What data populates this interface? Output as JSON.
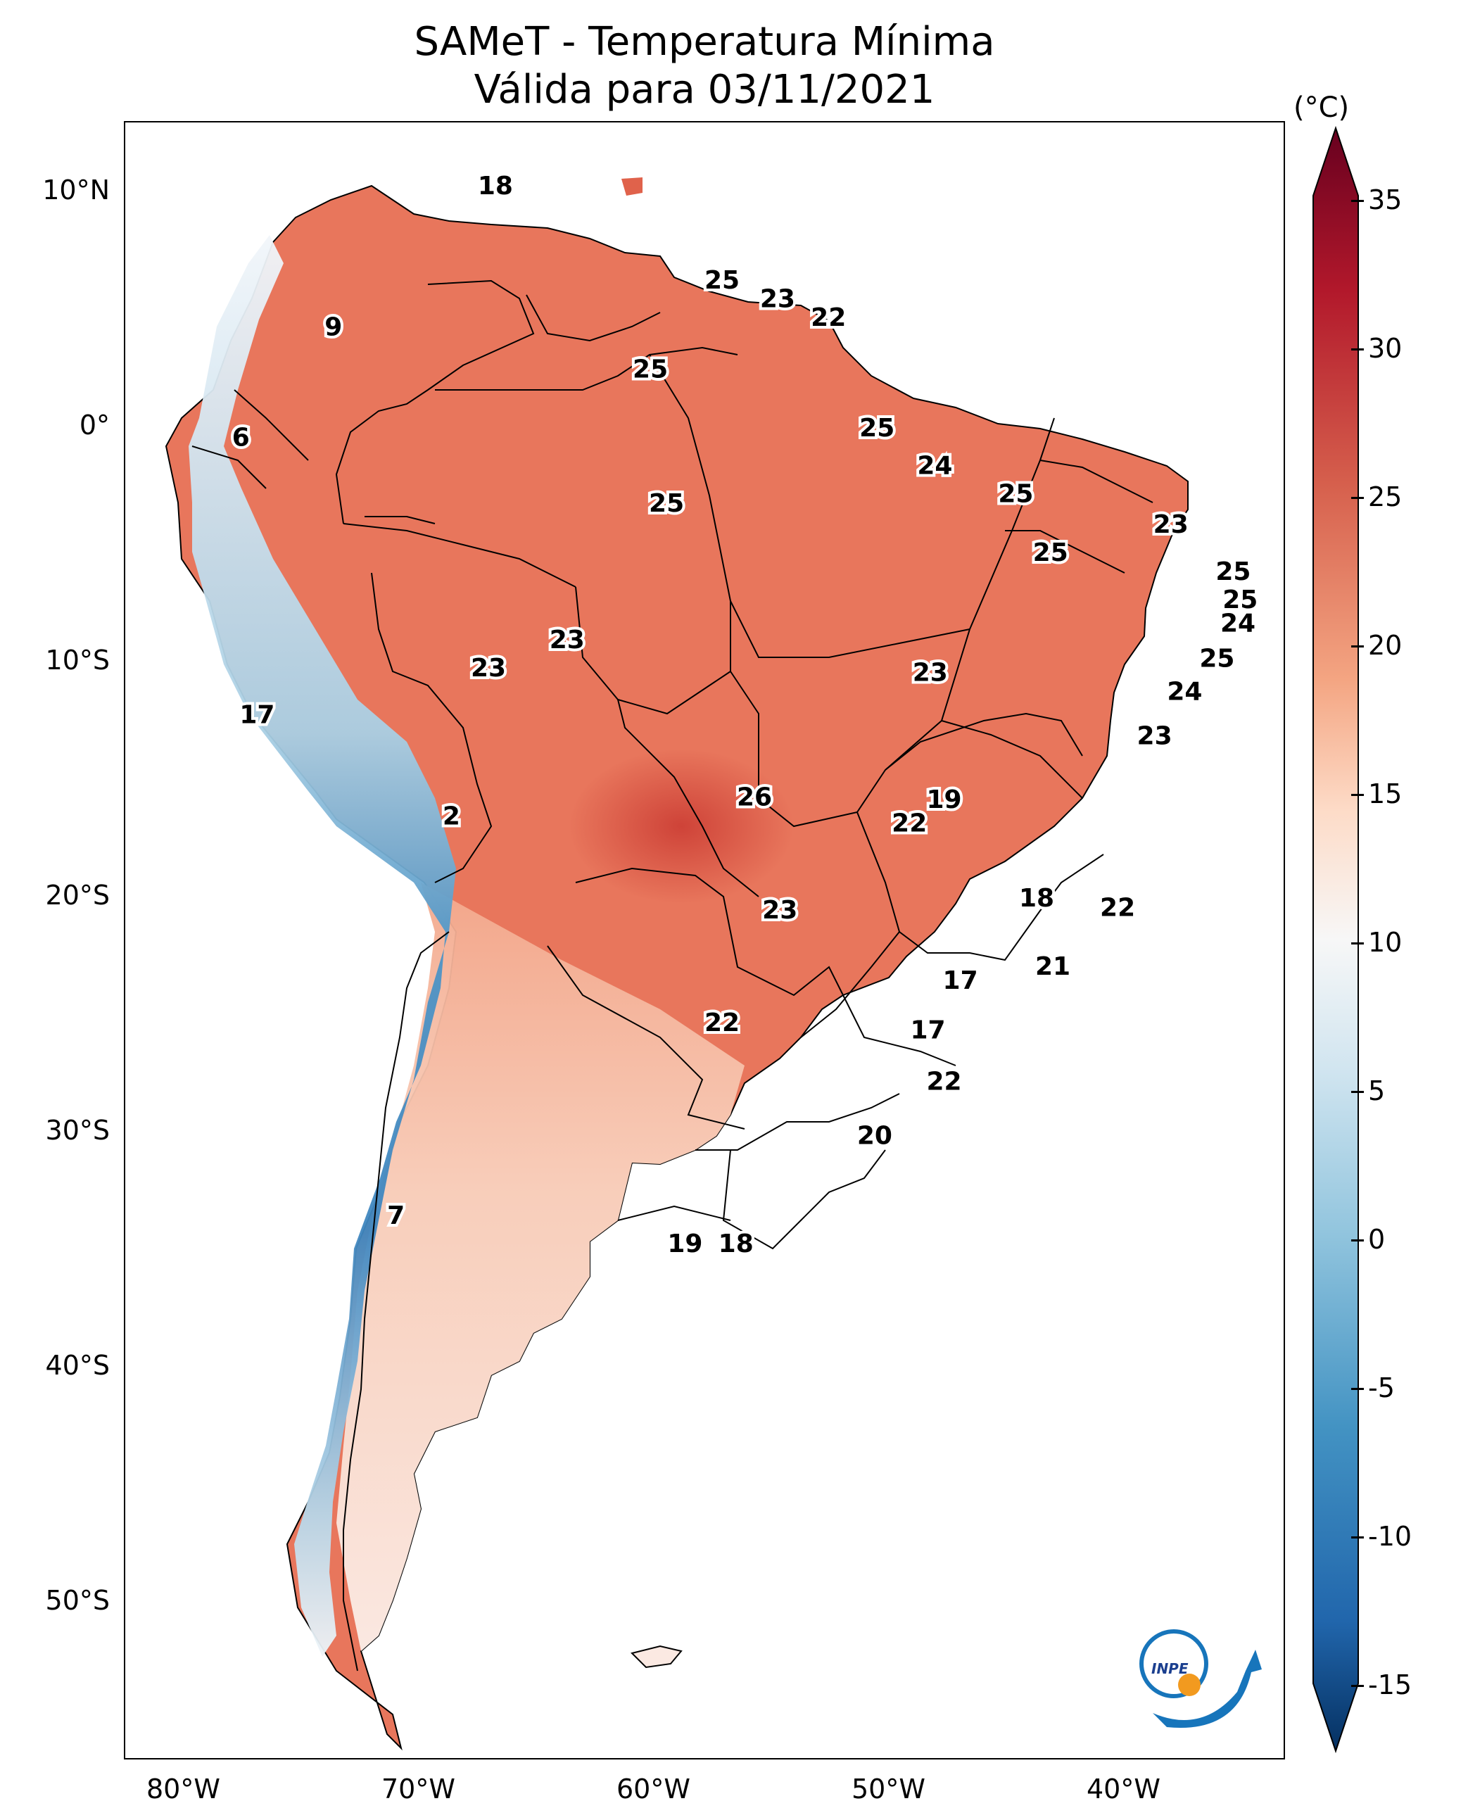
{
  "title": "SAMeT - Temperatura Mínima",
  "subtitle": "Válida para 03/11/2021",
  "latitude_labels": [
    "10°N",
    "0°",
    "10°S",
    "20°S",
    "30°S",
    "40°S",
    "50°S"
  ],
  "longitude_labels": [
    "80°W",
    "70°W",
    "60°W",
    "50°W",
    "40°W"
  ],
  "colorbar": {
    "unit": "(°C)",
    "ticks": [
      "35",
      "30",
      "25",
      "20",
      "15",
      "10",
      "5",
      "0",
      "-5",
      "-10",
      "-15"
    ],
    "range": [
      -15,
      35
    ]
  },
  "logo": "INPE",
  "map_values": [
    {
      "label": "18",
      "lon": -67,
      "lat": 10.5
    },
    {
      "label": "9",
      "lon": -74,
      "lat": 4.5
    },
    {
      "label": "6",
      "lon": -78,
      "lat": -0.2
    },
    {
      "label": "25",
      "lon": -57.2,
      "lat": 6.5
    },
    {
      "label": "23",
      "lon": -54.8,
      "lat": 5.7
    },
    {
      "label": "22",
      "lon": -52.6,
      "lat": 4.9
    },
    {
      "label": "25",
      "lon": -60.3,
      "lat": 2.7
    },
    {
      "label": "25",
      "lon": -50.5,
      "lat": 0.2
    },
    {
      "label": "24",
      "lon": -48,
      "lat": -1.4
    },
    {
      "label": "25",
      "lon": -59.6,
      "lat": -3
    },
    {
      "label": "25",
      "lon": -44.5,
      "lat": -2.6
    },
    {
      "label": "23",
      "lon": -37.8,
      "lat": -3.9
    },
    {
      "label": "25",
      "lon": -43,
      "lat": -5.1
    },
    {
      "label": "25",
      "lon": -35.1,
      "lat": -5.9
    },
    {
      "label": "25",
      "lon": -34.8,
      "lat": -7.1
    },
    {
      "label": "24",
      "lon": -34.9,
      "lat": -8.1
    },
    {
      "label": "25",
      "lon": -35.8,
      "lat": -9.6
    },
    {
      "label": "23",
      "lon": -63.9,
      "lat": -8.8
    },
    {
      "label": "23",
      "lon": -67.3,
      "lat": -10
    },
    {
      "label": "23",
      "lon": -48.2,
      "lat": -10.2
    },
    {
      "label": "24",
      "lon": -37.2,
      "lat": -11
    },
    {
      "label": "17",
      "lon": -77.3,
      "lat": -12
    },
    {
      "label": "23",
      "lon": -38.5,
      "lat": -12.9
    },
    {
      "label": "26",
      "lon": -55.8,
      "lat": -15.5
    },
    {
      "label": "19",
      "lon": -47.6,
      "lat": -15.6
    },
    {
      "label": "2",
      "lon": -68.9,
      "lat": -16.3
    },
    {
      "label": "22",
      "lon": -49.1,
      "lat": -16.6
    },
    {
      "label": "18",
      "lon": -43.6,
      "lat": -19.8
    },
    {
      "label": "23",
      "lon": -54.7,
      "lat": -20.3
    },
    {
      "label": "22",
      "lon": -40.1,
      "lat": -20.2
    },
    {
      "label": "21",
      "lon": -42.9,
      "lat": -22.7
    },
    {
      "label": "17",
      "lon": -46.9,
      "lat": -23.3
    },
    {
      "label": "22",
      "lon": -57.2,
      "lat": -25.1
    },
    {
      "label": "17",
      "lon": -48.3,
      "lat": -25.4
    },
    {
      "label": "22",
      "lon": -47.6,
      "lat": -27.6
    },
    {
      "label": "20",
      "lon": -50.6,
      "lat": -29.9
    },
    {
      "label": "7",
      "lon": -71.3,
      "lat": -33.3
    },
    {
      "label": "19",
      "lon": -58.8,
      "lat": -34.5
    },
    {
      "label": "18",
      "lon": -56.6,
      "lat": -34.5
    }
  ]
}
